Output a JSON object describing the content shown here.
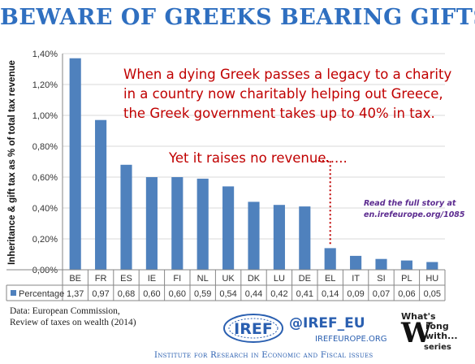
{
  "header": {
    "title": "BEWARE OF GREEKS BEARING GIFTS"
  },
  "annotations": {
    "main_lines": [
      "When a dying Greek passes a legacy to a charity",
      "in a country now charitably helping out Greece,",
      "the Greek government takes up to 40% in tax."
    ],
    "revenue": "Yet it raises no revenue.....",
    "story_lines": [
      "Read the full story at",
      "en.irefeurope.org/1085"
    ]
  },
  "footer": {
    "source_lines": [
      "Data: European Commission,",
      "Review of taxes on wealth (2014)"
    ],
    "logo_text": "IREF",
    "handle": "@IREF_EU",
    "site": "IREFEUROPE.ORG",
    "institute": "Institute for Research in Economic and Fiscal issues",
    "badge_top": "What's",
    "badge_mid": "W",
    "badge_bottom": "series",
    "badge_lines": [
      "rong",
      "with..."
    ]
  },
  "colors": {
    "bar": "#4f81bd",
    "title": "#2f6fc0",
    "annotation": "#c00000",
    "story": "#5b2a8f"
  },
  "chart_data": {
    "type": "bar",
    "categories": [
      "BE",
      "FR",
      "ES",
      "IE",
      "FI",
      "NL",
      "UK",
      "DK",
      "LU",
      "DE",
      "EL",
      "IT",
      "SI",
      "PL",
      "HU"
    ],
    "series": [
      {
        "name": "Percentage",
        "values": [
          1.37,
          0.97,
          0.68,
          0.6,
          0.6,
          0.59,
          0.54,
          0.44,
          0.42,
          0.41,
          0.14,
          0.09,
          0.07,
          0.06,
          0.05
        ],
        "labels": [
          "1,37",
          "0,97",
          "0,68",
          "0,60",
          "0,60",
          "0,59",
          "0,54",
          "0,44",
          "0,42",
          "0,41",
          "0,14",
          "0,09",
          "0,07",
          "0,06",
          "0,05"
        ]
      }
    ],
    "ylabel": "Inheritance & gift tax as % of total tax revenue",
    "ylim": [
      0,
      1.4
    ],
    "yticks": [
      "0,00%",
      "0,20%",
      "0,40%",
      "0,60%",
      "0,80%",
      "1,00%",
      "1,20%",
      "1,40%"
    ],
    "grid": true,
    "legend": "data-table"
  }
}
